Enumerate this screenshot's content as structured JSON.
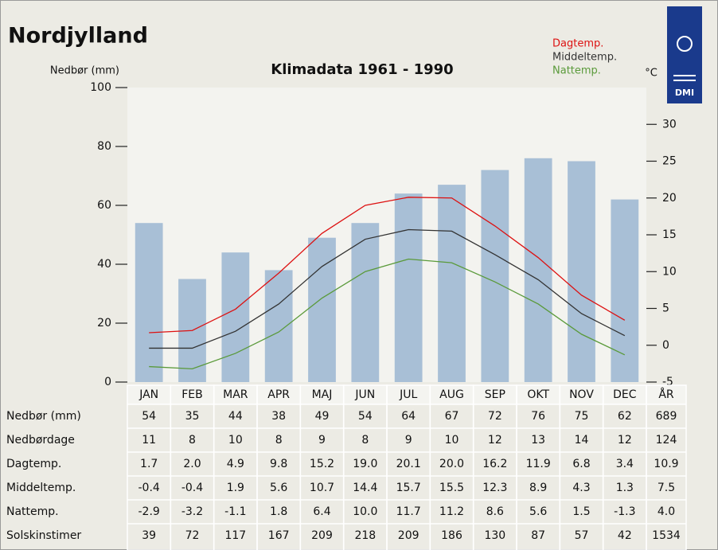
{
  "chart_data": {
    "type": "bar",
    "title": "Nordjylland",
    "subtitle": "Klimadata 1961 - 1990",
    "y2label": "°C",
    "logo": "DMI",
    "categories": [
      "JAN",
      "FEB",
      "MAR",
      "APR",
      "MAJ",
      "JUN",
      "JUL",
      "AUG",
      "SEP",
      "OKT",
      "NOV",
      "DEC"
    ],
    "total_label": "ÅR",
    "ylim": [
      0,
      100
    ],
    "yticks": [
      0,
      20,
      40,
      60,
      80,
      100
    ],
    "y2lim": [
      -5,
      35
    ],
    "y2ticks": [
      -5,
      0,
      5,
      10,
      15,
      20,
      25,
      30
    ],
    "series": [
      {
        "name": "Nedbør (mm)",
        "type": "bar",
        "color": "#a8bfd6",
        "values": [
          54,
          35,
          44,
          38,
          49,
          54,
          64,
          67,
          72,
          76,
          75,
          62
        ],
        "total": 689
      },
      {
        "name": "Dagtemp.",
        "type": "line",
        "axis": "y2",
        "color": "#dd1111",
        "values": [
          1.7,
          2.0,
          4.9,
          9.8,
          15.2,
          19.0,
          20.1,
          20.0,
          16.2,
          11.9,
          6.8,
          3.4
        ],
        "value_labels": [
          "1.7",
          "2.0",
          "4.9",
          "9.8",
          "15.2",
          "19.0",
          "20.1",
          "20.0",
          "16.2",
          "11.9",
          "6.8",
          "3.4"
        ],
        "total": 10.9
      },
      {
        "name": "Middeltemp.",
        "type": "line",
        "axis": "y2",
        "color": "#333333",
        "values": [
          -0.4,
          -0.4,
          1.9,
          5.6,
          10.7,
          14.4,
          15.7,
          15.5,
          12.3,
          8.9,
          4.3,
          1.3
        ],
        "total": 7.5
      },
      {
        "name": "Nattemp.",
        "type": "line",
        "axis": "y2",
        "color": "#5a9a3a",
        "values": [
          -2.9,
          -3.2,
          -1.1,
          1.8,
          6.4,
          10.0,
          11.7,
          11.2,
          8.6,
          5.6,
          1.5,
          -1.3
        ],
        "value_labels": [
          "-2.9",
          "-3.2",
          "-1.1",
          "1.8",
          "6.4",
          "10.0",
          "11.7",
          "11.2",
          "8.6",
          "5.6",
          "1.5",
          "-1.3"
        ],
        "total": 4.0,
        "total_label": "4.0"
      }
    ]
  },
  "table": {
    "rows": [
      {
        "label": "Nedbørdage",
        "values": [
          11,
          8,
          10,
          8,
          9,
          8,
          9,
          10,
          12,
          13,
          14,
          12
        ],
        "total": 124
      },
      {
        "label": "Solskinstimer",
        "values": [
          39,
          72,
          117,
          167,
          209,
          218,
          209,
          186,
          130,
          87,
          57,
          42
        ],
        "total": 1534
      }
    ]
  }
}
